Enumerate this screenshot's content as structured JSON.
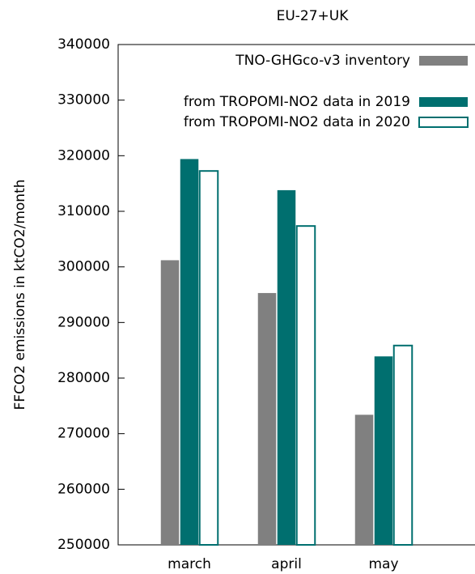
{
  "chart_data": {
    "type": "bar",
    "title": "EU-27+UK",
    "y_label": "FFCO2 emissions in ktCO2/month",
    "categories": [
      "march",
      "april",
      "may"
    ],
    "series": [
      {
        "name": "TNO-GHGco-v3 inventory",
        "color": "#808080",
        "filled": true,
        "values": [
          301200,
          295300,
          273400
        ]
      },
      {
        "name": "from TROPOMI-NO2 data in 2019",
        "color": "#006f6f",
        "filled": true,
        "values": [
          319400,
          313800,
          283900
        ]
      },
      {
        "name": "from TROPOMI-NO2 data in 2020",
        "color": "#006f6f",
        "filled": false,
        "values": [
          317400,
          307500,
          286000
        ]
      }
    ],
    "ylim": [
      250000,
      340000
    ],
    "yticks": [
      250000,
      260000,
      270000,
      280000,
      290000,
      300000,
      310000,
      320000,
      330000,
      340000
    ],
    "legend": "top-right"
  }
}
